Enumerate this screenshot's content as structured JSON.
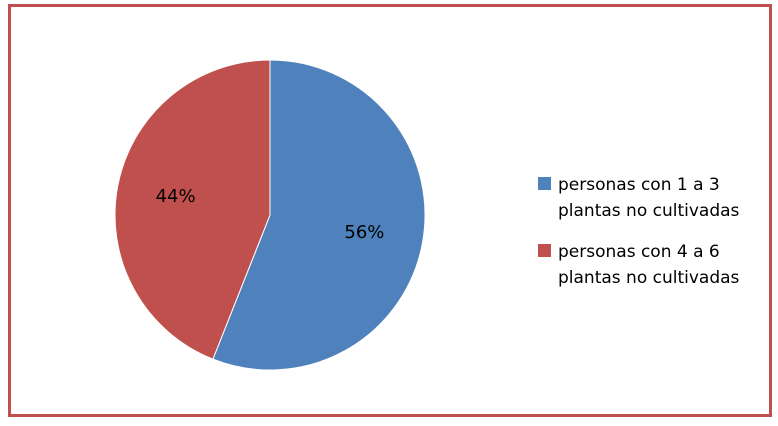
{
  "chart_data": {
    "type": "pie",
    "title": "",
    "categories": [
      "personas con 1 a 3 plantas no cultivadas",
      "personas con 4 a 6 plantas no cultivadas"
    ],
    "values": [
      56,
      44
    ],
    "data_labels": [
      "56%",
      "44%"
    ],
    "colors": [
      "#4f81bd",
      "#c0504d"
    ],
    "start_angle_deg": 0,
    "direction": "clockwise",
    "legend_position": "right"
  },
  "legend": {
    "items": [
      {
        "label": "personas con 1 a 3 plantas no cultivadas",
        "color": "#4f81bd"
      },
      {
        "label": "personas con 4 a 6 plantas no cultivadas",
        "color": "#c0504d"
      }
    ]
  },
  "frame": {
    "border_color": "#c0504d"
  }
}
